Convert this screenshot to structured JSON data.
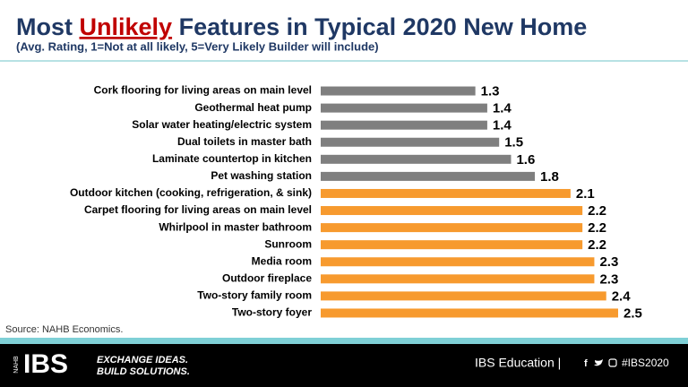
{
  "chart_data": {
    "type": "bar",
    "orientation": "horizontal",
    "title": {
      "before": "Most",
      "emphasis": "Unlikely",
      "after": "Features in Typical 2020 New Home"
    },
    "subtitle": "(Avg. Rating, 1=Not at all likely, 5=Very Likely Builder will include)",
    "categories": [
      "Cork flooring for living areas on main level",
      "Geothermal heat pump",
      "Solar water heating/electric system",
      "Dual toilets in master bath",
      "Laminate countertop in kitchen",
      "Pet washing station",
      "Outdoor kitchen (cooking, refrigeration, & sink)",
      "Carpet flooring for living areas on main level",
      "Whirlpool in master bathroom",
      "Sunroom",
      "Media room",
      "Outdoor fireplace",
      "Two-story family room",
      "Two-story foyer"
    ],
    "values": [
      1.3,
      1.4,
      1.4,
      1.5,
      1.6,
      1.8,
      2.1,
      2.2,
      2.2,
      2.2,
      2.3,
      2.3,
      2.4,
      2.5
    ],
    "colors": [
      "#7f7f7f",
      "#7f7f7f",
      "#7f7f7f",
      "#7f7f7f",
      "#7f7f7f",
      "#7f7f7f",
      "#f79a2e",
      "#f79a2e",
      "#f79a2e",
      "#f79a2e",
      "#f79a2e",
      "#f79a2e",
      "#f79a2e",
      "#f79a2e"
    ],
    "source": "Source:  NAHB Economics."
  },
  "footer": {
    "logo": "IBS",
    "logo_small": "NAHB",
    "tagline": [
      "EXCHANGE IDEAS.",
      "BUILD SOLUTIONS."
    ],
    "education": "IBS Education |",
    "facebook": "f",
    "hashtag": "#IBS2020"
  }
}
